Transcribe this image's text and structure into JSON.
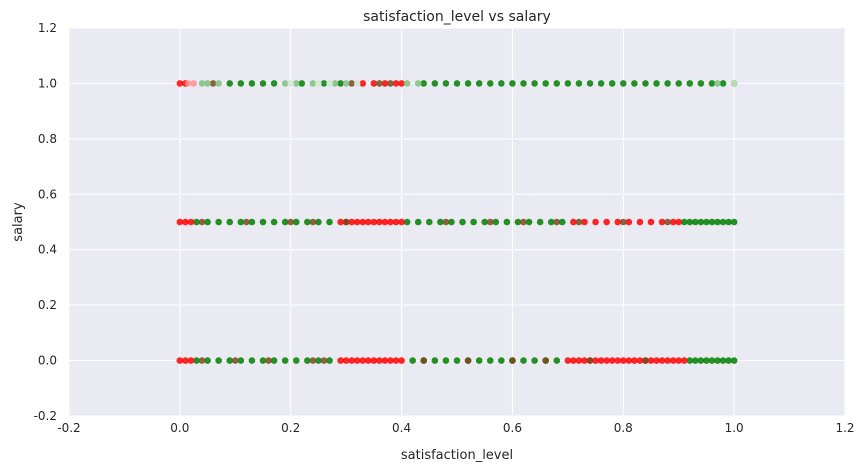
{
  "chart_data": {
    "type": "scatter",
    "title": "satisfaction_level vs salary",
    "xlabel": "satisfaction_level",
    "ylabel": "salary",
    "xlim": [
      -0.2,
      1.2
    ],
    "ylim": [
      -0.2,
      1.2
    ],
    "xticks": [
      "-0.2",
      "0.0",
      "0.2",
      "0.4",
      "0.6",
      "0.8",
      "1.0",
      "1.2"
    ],
    "yticks": [
      "-0.2",
      "0.0",
      "0.2",
      "0.4",
      "0.6",
      "0.8",
      "1.0",
      "1.2"
    ],
    "grid": true,
    "background": "#eaeaf2",
    "grid_color": "#ffffff",
    "series": [
      {
        "color": "#008000",
        "points": [
          [
            0.09,
            1.0
          ],
          [
            0.11,
            1.0
          ],
          [
            0.13,
            1.0
          ],
          [
            0.15,
            1.0
          ],
          [
            0.17,
            1.0
          ],
          [
            0.22,
            1.0
          ],
          [
            0.26,
            1.0
          ],
          [
            0.29,
            1.0
          ],
          [
            0.44,
            1.0
          ],
          [
            0.46,
            1.0
          ],
          [
            0.48,
            1.0
          ],
          [
            0.5,
            1.0
          ],
          [
            0.52,
            1.0
          ],
          [
            0.54,
            1.0
          ],
          [
            0.56,
            1.0
          ],
          [
            0.58,
            1.0
          ],
          [
            0.6,
            1.0
          ],
          [
            0.62,
            1.0
          ],
          [
            0.64,
            1.0
          ],
          [
            0.66,
            1.0
          ],
          [
            0.68,
            1.0
          ],
          [
            0.7,
            1.0
          ],
          [
            0.72,
            1.0
          ],
          [
            0.74,
            1.0
          ],
          [
            0.76,
            1.0
          ],
          [
            0.78,
            1.0
          ],
          [
            0.8,
            1.0
          ],
          [
            0.82,
            1.0
          ],
          [
            0.84,
            1.0
          ],
          [
            0.86,
            1.0
          ],
          [
            0.88,
            1.0
          ],
          [
            0.9,
            1.0
          ],
          [
            0.92,
            1.0
          ],
          [
            0.94,
            1.0
          ],
          [
            0.96,
            1.0
          ],
          [
            0.98,
            1.0
          ],
          [
            1.0,
            1.0
          ],
          [
            0.03,
            0.5
          ],
          [
            0.05,
            0.5
          ],
          [
            0.07,
            0.5
          ],
          [
            0.09,
            0.5
          ],
          [
            0.11,
            0.5
          ],
          [
            0.13,
            0.5
          ],
          [
            0.15,
            0.5
          ],
          [
            0.17,
            0.5
          ],
          [
            0.19,
            0.5
          ],
          [
            0.21,
            0.5
          ],
          [
            0.23,
            0.5
          ],
          [
            0.25,
            0.5
          ],
          [
            0.27,
            0.5
          ],
          [
            0.41,
            0.5
          ],
          [
            0.43,
            0.5
          ],
          [
            0.45,
            0.5
          ],
          [
            0.47,
            0.5
          ],
          [
            0.49,
            0.5
          ],
          [
            0.51,
            0.5
          ],
          [
            0.53,
            0.5
          ],
          [
            0.55,
            0.5
          ],
          [
            0.57,
            0.5
          ],
          [
            0.59,
            0.5
          ],
          [
            0.61,
            0.5
          ],
          [
            0.63,
            0.5
          ],
          [
            0.65,
            0.5
          ],
          [
            0.67,
            0.5
          ],
          [
            0.69,
            0.5
          ],
          [
            0.91,
            0.5
          ],
          [
            0.92,
            0.5
          ],
          [
            0.93,
            0.5
          ],
          [
            0.94,
            0.5
          ],
          [
            0.95,
            0.5
          ],
          [
            0.96,
            0.5
          ],
          [
            0.97,
            0.5
          ],
          [
            0.98,
            0.5
          ],
          [
            0.99,
            0.5
          ],
          [
            1.0,
            0.5
          ],
          [
            0.03,
            0.0
          ],
          [
            0.05,
            0.0
          ],
          [
            0.07,
            0.0
          ],
          [
            0.09,
            0.0
          ],
          [
            0.11,
            0.0
          ],
          [
            0.13,
            0.0
          ],
          [
            0.15,
            0.0
          ],
          [
            0.17,
            0.0
          ],
          [
            0.19,
            0.0
          ],
          [
            0.21,
            0.0
          ],
          [
            0.23,
            0.0
          ],
          [
            0.25,
            0.0
          ],
          [
            0.27,
            0.0
          ],
          [
            0.42,
            0.0
          ],
          [
            0.44,
            0.0
          ],
          [
            0.46,
            0.0
          ],
          [
            0.48,
            0.0
          ],
          [
            0.5,
            0.0
          ],
          [
            0.52,
            0.0
          ],
          [
            0.54,
            0.0
          ],
          [
            0.56,
            0.0
          ],
          [
            0.58,
            0.0
          ],
          [
            0.6,
            0.0
          ],
          [
            0.62,
            0.0
          ],
          [
            0.64,
            0.0
          ],
          [
            0.66,
            0.0
          ],
          [
            0.68,
            0.0
          ],
          [
            0.92,
            0.0
          ],
          [
            0.93,
            0.0
          ],
          [
            0.94,
            0.0
          ],
          [
            0.95,
            0.0
          ],
          [
            0.96,
            0.0
          ],
          [
            0.97,
            0.0
          ],
          [
            0.98,
            0.0
          ],
          [
            0.99,
            0.0
          ],
          [
            1.0,
            0.0
          ]
        ]
      },
      {
        "color": "#ff0000",
        "points": [
          [
            0.0,
            1.0
          ],
          [
            0.01,
            1.0
          ],
          [
            0.33,
            1.0
          ],
          [
            0.35,
            1.0
          ],
          [
            0.37,
            1.0
          ],
          [
            0.39,
            1.0
          ],
          [
            0.4,
            1.0
          ],
          [
            0.0,
            0.5
          ],
          [
            0.01,
            0.5
          ],
          [
            0.02,
            0.5
          ],
          [
            0.29,
            0.5
          ],
          [
            0.3,
            0.5
          ],
          [
            0.31,
            0.5
          ],
          [
            0.32,
            0.5
          ],
          [
            0.33,
            0.5
          ],
          [
            0.34,
            0.5
          ],
          [
            0.35,
            0.5
          ],
          [
            0.36,
            0.5
          ],
          [
            0.37,
            0.5
          ],
          [
            0.38,
            0.5
          ],
          [
            0.39,
            0.5
          ],
          [
            0.4,
            0.5
          ],
          [
            0.71,
            0.5
          ],
          [
            0.73,
            0.5
          ],
          [
            0.75,
            0.5
          ],
          [
            0.77,
            0.5
          ],
          [
            0.79,
            0.5
          ],
          [
            0.81,
            0.5
          ],
          [
            0.83,
            0.5
          ],
          [
            0.85,
            0.5
          ],
          [
            0.87,
            0.5
          ],
          [
            0.89,
            0.5
          ],
          [
            0.9,
            0.5
          ],
          [
            0.0,
            0.0
          ],
          [
            0.01,
            0.0
          ],
          [
            0.02,
            0.0
          ],
          [
            0.29,
            0.0
          ],
          [
            0.3,
            0.0
          ],
          [
            0.31,
            0.0
          ],
          [
            0.32,
            0.0
          ],
          [
            0.33,
            0.0
          ],
          [
            0.34,
            0.0
          ],
          [
            0.35,
            0.0
          ],
          [
            0.36,
            0.0
          ],
          [
            0.37,
            0.0
          ],
          [
            0.38,
            0.0
          ],
          [
            0.39,
            0.0
          ],
          [
            0.4,
            0.0
          ],
          [
            0.7,
            0.0
          ],
          [
            0.71,
            0.0
          ],
          [
            0.72,
            0.0
          ],
          [
            0.73,
            0.0
          ],
          [
            0.74,
            0.0
          ],
          [
            0.75,
            0.0
          ],
          [
            0.76,
            0.0
          ],
          [
            0.77,
            0.0
          ],
          [
            0.78,
            0.0
          ],
          [
            0.79,
            0.0
          ],
          [
            0.8,
            0.0
          ],
          [
            0.81,
            0.0
          ],
          [
            0.82,
            0.0
          ],
          [
            0.83,
            0.0
          ],
          [
            0.84,
            0.0
          ],
          [
            0.85,
            0.0
          ],
          [
            0.86,
            0.0
          ],
          [
            0.87,
            0.0
          ],
          [
            0.88,
            0.0
          ],
          [
            0.89,
            0.0
          ],
          [
            0.9,
            0.0
          ],
          [
            0.91,
            0.0
          ]
        ]
      },
      {
        "color": "#7a4a1a",
        "points": [
          [
            0.06,
            1.0
          ],
          [
            0.31,
            1.0
          ],
          [
            0.36,
            1.0
          ],
          [
            0.38,
            1.0
          ],
          [
            0.04,
            0.5
          ],
          [
            0.12,
            0.5
          ],
          [
            0.2,
            0.5
          ],
          [
            0.24,
            0.5
          ],
          [
            0.3,
            0.5
          ],
          [
            0.48,
            0.5
          ],
          [
            0.56,
            0.5
          ],
          [
            0.62,
            0.5
          ],
          [
            0.68,
            0.5
          ],
          [
            0.72,
            0.5
          ],
          [
            0.8,
            0.5
          ],
          [
            0.88,
            0.5
          ],
          [
            0.04,
            0.0
          ],
          [
            0.1,
            0.0
          ],
          [
            0.16,
            0.0
          ],
          [
            0.24,
            0.0
          ],
          [
            0.26,
            0.0
          ],
          [
            0.44,
            0.0
          ],
          [
            0.52,
            0.0
          ],
          [
            0.6,
            0.0
          ],
          [
            0.66,
            0.0
          ],
          [
            0.74,
            0.0
          ],
          [
            0.84,
            0.0
          ]
        ]
      },
      {
        "color": "#7fbf7f",
        "points": [
          [
            0.04,
            1.0
          ],
          [
            0.05,
            1.0
          ],
          [
            0.07,
            1.0
          ],
          [
            0.19,
            1.0
          ],
          [
            0.21,
            1.0
          ],
          [
            0.24,
            1.0
          ],
          [
            0.28,
            1.0
          ],
          [
            0.3,
            1.0
          ],
          [
            0.41,
            1.0
          ],
          [
            0.43,
            1.0
          ],
          [
            0.97,
            1.0
          ]
        ]
      },
      {
        "color": "#ff9090",
        "points": [
          [
            0.015,
            1.0
          ],
          [
            0.025,
            1.0
          ]
        ]
      },
      {
        "color": "#d0e8d0",
        "points": [
          [
            0.2,
            1.0
          ],
          [
            0.25,
            1.0
          ],
          [
            0.27,
            1.0
          ],
          [
            0.32,
            1.0
          ],
          [
            1.0,
            1.0
          ]
        ]
      }
    ]
  }
}
